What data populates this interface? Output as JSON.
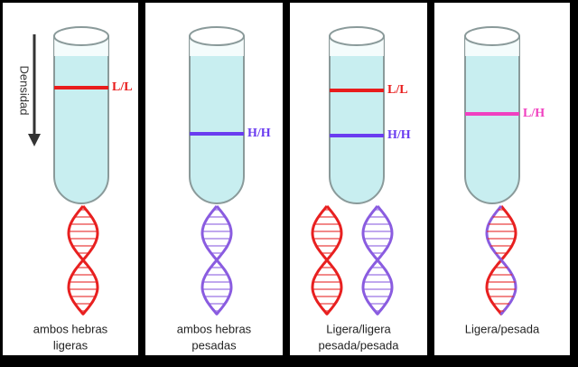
{
  "axis_label": "Densidad",
  "panels": [
    {
      "bands": [
        {
          "label": "L/L",
          "color": "#e81c1c"
        }
      ],
      "helices": [
        [
          "#e82020",
          "#e82020"
        ]
      ],
      "caption": [
        "ambos hebras",
        "ligeras"
      ]
    },
    {
      "bands": [
        {
          "label": "H/H",
          "color": "#6a3cf0"
        }
      ],
      "helices": [
        [
          "#8a5ce0",
          "#8a5ce0"
        ]
      ],
      "caption": [
        "ambos hebras",
        "pesadas"
      ]
    },
    {
      "bands": [
        {
          "label": "L/L",
          "color": "#e81c1c"
        },
        {
          "label": "H/H",
          "color": "#6a3cf0"
        }
      ],
      "helices": [
        [
          "#e82020",
          "#e82020"
        ],
        [
          "#8a5ce0",
          "#8a5ce0"
        ]
      ],
      "caption": [
        "Ligera/ligera",
        "pesada/pesada"
      ]
    },
    {
      "bands": [
        {
          "label": "L/H",
          "color": "#f040c0"
        }
      ],
      "helices": [
        [
          "#e82020",
          "#8a5ce0"
        ]
      ],
      "caption": [
        "Ligera/pesada"
      ]
    }
  ]
}
